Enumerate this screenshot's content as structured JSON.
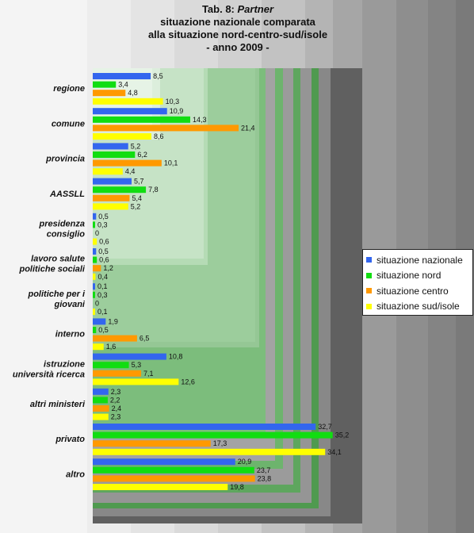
{
  "title": {
    "prefix": "Tab. 8:",
    "italic": "Partner",
    "line2": "situazione nazionale comparata",
    "line3": "alla situazione nord-centro-sud/isole",
    "line4": "- anno 2009 -"
  },
  "colors": {
    "nazionale": "#3366ee",
    "nord": "#11dd11",
    "centro": "#ff9900",
    "sud": "#ffff00"
  },
  "chart_data": {
    "type": "bar",
    "orientation": "horizontal",
    "categories": [
      "regione",
      "comune",
      "provincia",
      "AASSLL",
      "presidenza consiglio",
      "lavoro salute politiche sociali",
      "politiche per i giovani",
      "interno",
      "istruzione università ricerca",
      "altri ministeri",
      "privato",
      "altro"
    ],
    "series": [
      {
        "name": "situazione nazionale",
        "values": [
          8.5,
          10.9,
          5.2,
          5.7,
          0.5,
          0.5,
          0.1,
          1.9,
          10.8,
          2.3,
          32.7,
          20.9
        ],
        "labels": [
          "8,5",
          "10,9",
          "5,2",
          "5,7",
          "0,5",
          "0,5",
          "0,1",
          "1,9",
          "10,8",
          "2,3",
          "32,7",
          "20,9"
        ]
      },
      {
        "name": "situazione nord",
        "values": [
          3.4,
          14.3,
          6.2,
          7.8,
          0.3,
          0.6,
          0.3,
          0.5,
          5.3,
          2.2,
          35.2,
          23.7
        ],
        "labels": [
          "3,4",
          "14,3",
          "6,2",
          "7,8",
          "0,3",
          "0,6",
          "0,3",
          "0,5",
          "5,3",
          "2,2",
          "35,2",
          "23,7"
        ]
      },
      {
        "name": "situazione centro",
        "values": [
          4.8,
          21.4,
          10.1,
          5.4,
          0,
          1.2,
          0,
          6.5,
          7.1,
          2.4,
          17.3,
          23.8
        ],
        "labels": [
          "4,8",
          "21,4",
          "10,1",
          "5,4",
          "0",
          "1,2",
          "0",
          "6,5",
          "7,1",
          "2,4",
          "17,3",
          "23,8"
        ]
      },
      {
        "name": "situazione sud/isole",
        "values": [
          10.3,
          8.6,
          4.4,
          5.2,
          0.6,
          0.4,
          0.1,
          1.6,
          12.6,
          2.3,
          34.1,
          19.8
        ],
        "labels": [
          "10,3",
          "8,6",
          "4,4",
          "5,2",
          "0,6",
          "0,4",
          "0,1",
          "1,6",
          "12,6",
          "2,3",
          "34,1",
          "19,8"
        ]
      }
    ],
    "xlim": [
      0,
      40
    ],
    "legend_position": "right"
  },
  "legend": [
    {
      "label": "situazione nazionale",
      "color": "#3366ee"
    },
    {
      "label": "situazione nord",
      "color": "#11dd11"
    },
    {
      "label": "situazione centro",
      "color": "#ff9900"
    },
    {
      "label": "situazione sud/isole",
      "color": "#ffff00"
    }
  ]
}
